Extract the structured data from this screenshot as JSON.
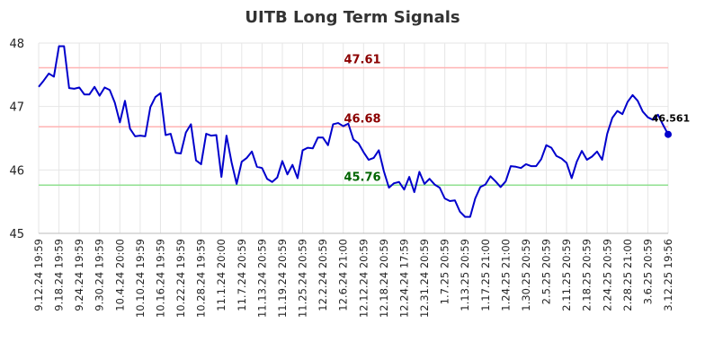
{
  "chart_data": {
    "type": "line",
    "title": "UITB Long Term Signals",
    "xlabel": "",
    "ylabel": "",
    "ylim": [
      45,
      48
    ],
    "yticks": [
      "45",
      "46",
      "47",
      "48"
    ],
    "grid": true,
    "x_tick_labels": [
      "9.12.24 19:59",
      "9.18.24 19:59",
      "9.24.24 19:59",
      "9.30.24 19:59",
      "10.4.24 20:00",
      "10.10.24 19:59",
      "10.16.24 19:59",
      "10.22.24 19:59",
      "10.28.24 19:59",
      "11.1.24 20:00",
      "11.7.24 20:59",
      "11.13.24 20:59",
      "11.19.24 20:59",
      "11.25.24 20:59",
      "12.2.24 20:59",
      "12.6.24 21:00",
      "12.12.24 20:59",
      "12.18.24 20:59",
      "12.24.24 17:59",
      "12.31.24 20:59",
      "1.7.25 20:59",
      "1.13.25 20:59",
      "1.17.25 21:00",
      "1.24.25 21:00",
      "1.30.25 20:59",
      "2.5.25 20:59",
      "2.11.25 20:59",
      "2.18.25 20:59",
      "2.24.25 20:59",
      "2.28.25 21:00",
      "3.6.25 20:59",
      "3.12.25 19:56"
    ],
    "reference_lines": [
      {
        "label": "47.61",
        "value": 47.61,
        "color": "#ffb3b3",
        "label_color": "#8b0000"
      },
      {
        "label": "46.68",
        "value": 46.68,
        "color": "#ffb3b3",
        "label_color": "#8b0000"
      },
      {
        "label": "45.76",
        "value": 45.76,
        "color": "#90e090",
        "label_color": "#006400"
      }
    ],
    "series": [
      {
        "color": "#0000cc",
        "values": [
          47.31,
          47.41,
          47.52,
          47.47,
          47.95,
          47.95,
          47.29,
          47.28,
          47.3,
          47.19,
          47.19,
          47.31,
          47.17,
          47.3,
          47.26,
          47.06,
          46.75,
          47.09,
          46.65,
          46.53,
          46.54,
          46.53,
          46.99,
          47.15,
          47.21,
          46.55,
          46.57,
          46.27,
          46.26,
          46.59,
          46.72,
          46.15,
          46.09,
          46.57,
          46.54,
          46.55,
          45.89,
          46.54,
          46.12,
          45.78,
          46.13,
          46.19,
          46.29,
          46.05,
          46.03,
          45.86,
          45.81,
          45.88,
          46.14,
          45.93,
          46.08,
          45.87,
          46.31,
          46.35,
          46.34,
          46.51,
          46.51,
          46.39,
          46.72,
          46.74,
          46.69,
          46.73,
          46.48,
          46.42,
          46.28,
          46.16,
          46.19,
          46.31,
          45.98,
          45.72,
          45.79,
          45.81,
          45.69,
          45.89,
          45.65,
          45.97,
          45.78,
          45.86,
          45.77,
          45.72,
          45.55,
          45.51,
          45.52,
          45.34,
          45.26,
          45.26,
          45.55,
          45.73,
          45.77,
          45.9,
          45.82,
          45.73,
          45.82,
          46.06,
          46.05,
          46.03,
          46.09,
          46.06,
          46.06,
          46.17,
          46.39,
          46.35,
          46.22,
          46.18,
          46.11,
          45.87,
          46.13,
          46.3,
          46.16,
          46.21,
          46.29,
          46.16,
          46.57,
          46.82,
          46.93,
          46.88,
          47.07,
          47.18,
          47.09,
          46.92,
          46.83,
          46.79,
          46.87,
          46.71,
          46.561
        ]
      }
    ],
    "last_point_label": "46.561"
  }
}
